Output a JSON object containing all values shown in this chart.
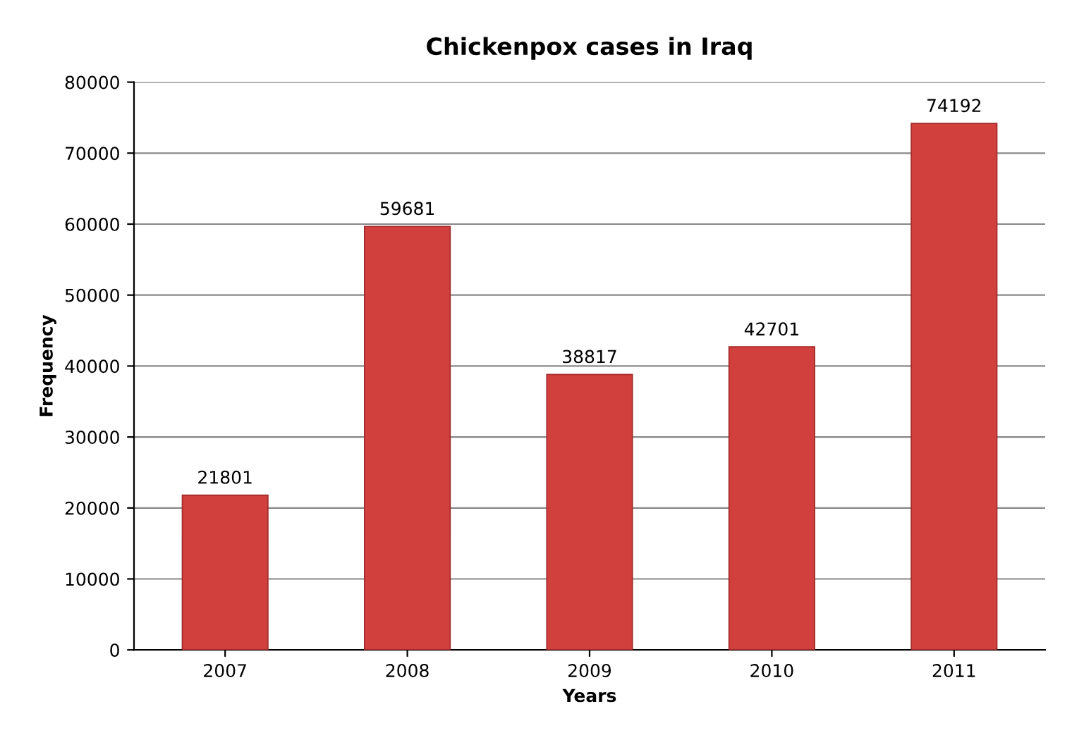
{
  "chart_data": {
    "type": "bar",
    "title": "Chickenpox cases in Iraq",
    "xlabel": "Years",
    "ylabel": "Frequency",
    "categories": [
      "2007",
      "2008",
      "2009",
      "2010",
      "2011"
    ],
    "values": [
      21801,
      59681,
      38817,
      42701,
      74192
    ],
    "color": "#d2403d",
    "ylim": [
      0,
      80000
    ],
    "yticks": [
      0,
      10000,
      20000,
      30000,
      40000,
      50000,
      60000,
      70000,
      80000
    ],
    "grid": "y",
    "data_labels": true
  }
}
